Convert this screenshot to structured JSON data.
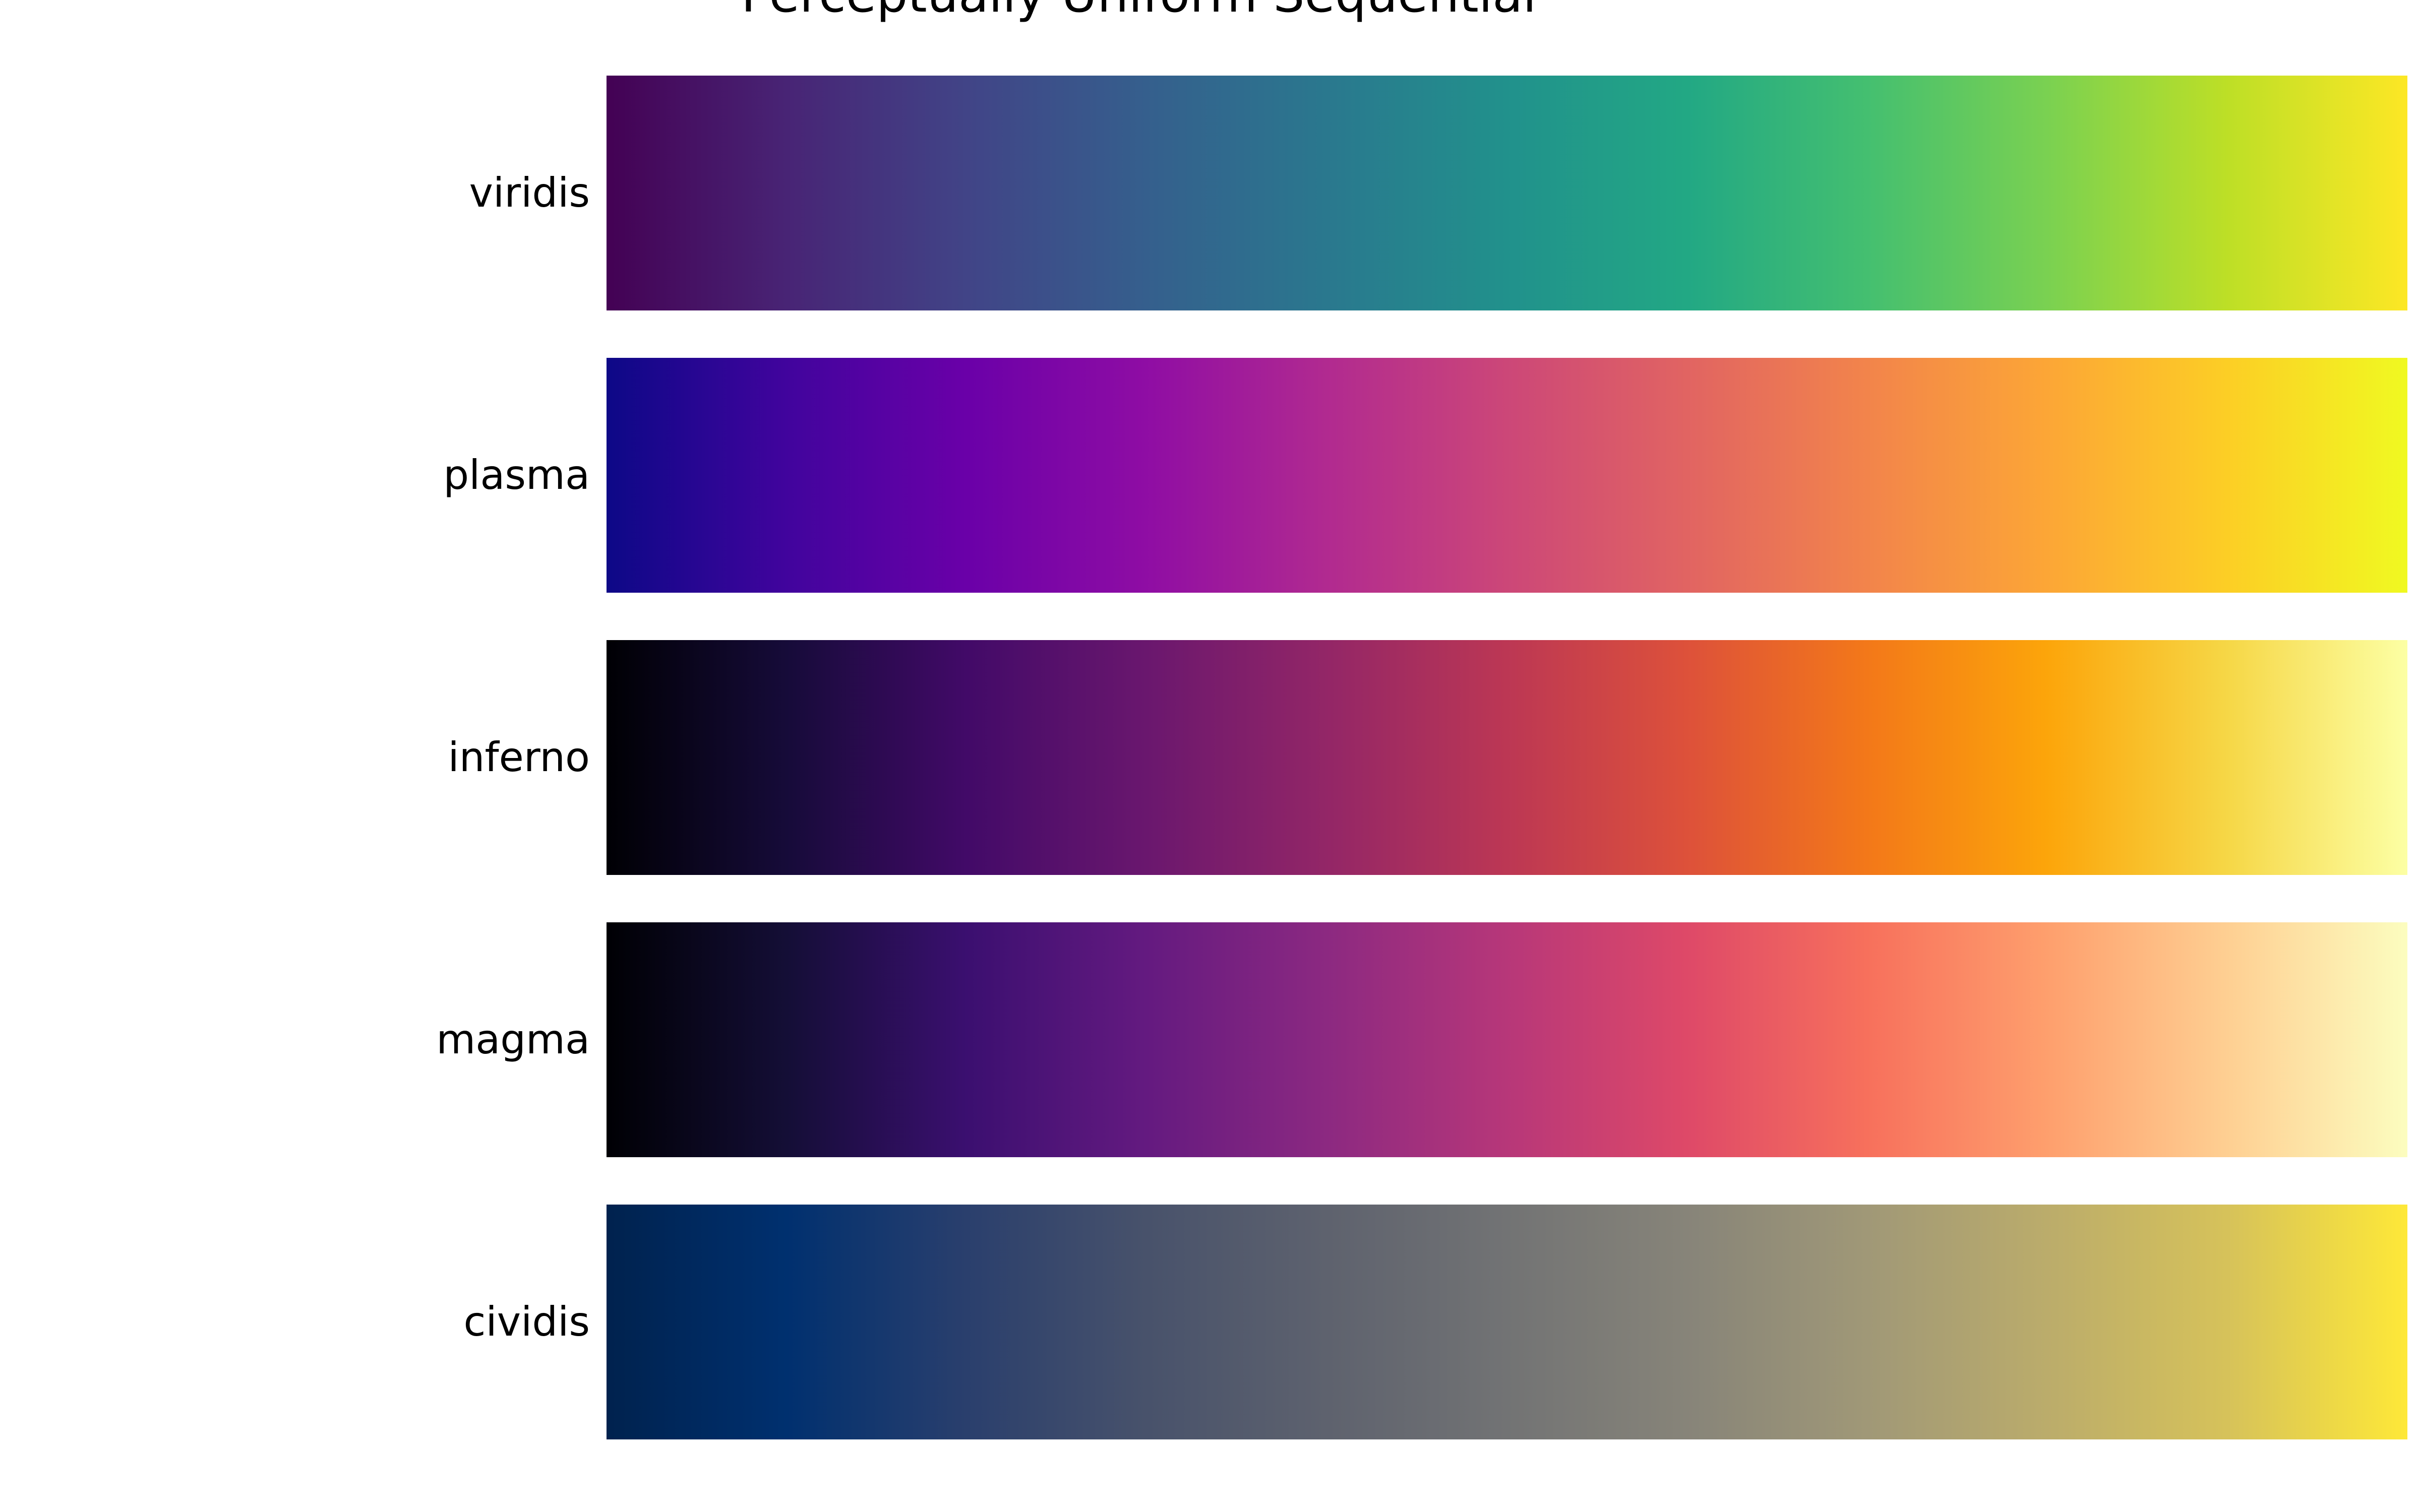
{
  "title": "Perceptually Uniform Sequential",
  "colormaps": [
    {
      "name": "viridis",
      "colors": [
        "#440154",
        "#482475",
        "#414487",
        "#355f8d",
        "#2a788e",
        "#21918c",
        "#22a884",
        "#44bf70",
        "#7ad151",
        "#bddf26",
        "#fde725"
      ]
    },
    {
      "name": "plasma",
      "colors": [
        "#0d0887",
        "#41049d",
        "#6a00a8",
        "#8f0da4",
        "#b12a90",
        "#cc4778",
        "#e16462",
        "#f2844b",
        "#fca636",
        "#fcce25",
        "#f0f921"
      ]
    },
    {
      "name": "inferno",
      "colors": [
        "#000004",
        "#160b39",
        "#420a68",
        "#6a176e",
        "#932667",
        "#bc3754",
        "#dd513a",
        "#f37819",
        "#fca50a",
        "#f6d746",
        "#fcffa4"
      ]
    },
    {
      "name": "magma",
      "colors": [
        "#000004",
        "#140e36",
        "#3b0f70",
        "#641a80",
        "#8c2981",
        "#b73779",
        "#de4968",
        "#f7705c",
        "#fe9f6d",
        "#fecf92",
        "#fcfdbf"
      ]
    },
    {
      "name": "cividis",
      "colors": [
        "#00224e",
        "#00306f",
        "#2a3f6d",
        "#48526b",
        "#5e626e",
        "#727374",
        "#878479",
        "#a09877",
        "#bbac6b",
        "#d6c25a",
        "#fee838"
      ]
    }
  ]
}
